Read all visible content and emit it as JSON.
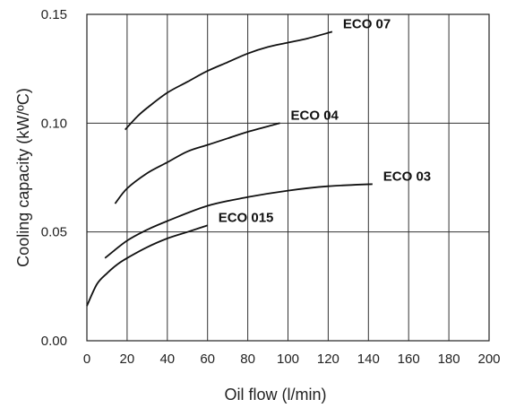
{
  "chart_data": {
    "type": "line",
    "title": "",
    "xlabel": "Oil flow (l/min)",
    "ylabel": "Cooling capacity (kW/ºC)",
    "xlim": [
      0,
      200
    ],
    "ylim": [
      0,
      0.15
    ],
    "xticks": [
      "0",
      "20",
      "40",
      "60",
      "80",
      "100",
      "120",
      "140",
      "160",
      "180",
      "200"
    ],
    "yticks": [
      "0.00",
      "0.05",
      "0.10",
      "0.15"
    ],
    "grid": true,
    "series": [
      {
        "name": "ECO 07",
        "x": [
          19,
          25,
          30,
          40,
          50,
          60,
          70,
          80,
          90,
          100,
          110,
          122
        ],
        "y": [
          0.097,
          0.103,
          0.107,
          0.114,
          0.119,
          0.124,
          0.128,
          0.132,
          0.135,
          0.137,
          0.139,
          0.142
        ]
      },
      {
        "name": "ECO 04",
        "x": [
          14,
          20,
          30,
          40,
          50,
          60,
          70,
          80,
          96
        ],
        "y": [
          0.063,
          0.07,
          0.077,
          0.082,
          0.087,
          0.09,
          0.093,
          0.096,
          0.1
        ]
      },
      {
        "name": "ECO 03",
        "x": [
          9,
          20,
          30,
          40,
          60,
          80,
          100,
          120,
          142
        ],
        "y": [
          0.038,
          0.046,
          0.051,
          0.055,
          0.062,
          0.066,
          0.069,
          0.071,
          0.072
        ]
      },
      {
        "name": "ECO 015",
        "x": [
          0,
          5,
          10,
          15,
          20,
          30,
          40,
          50,
          60
        ],
        "y": [
          0.016,
          0.026,
          0.031,
          0.035,
          0.038,
          0.043,
          0.047,
          0.05,
          0.053
        ]
      }
    ]
  }
}
